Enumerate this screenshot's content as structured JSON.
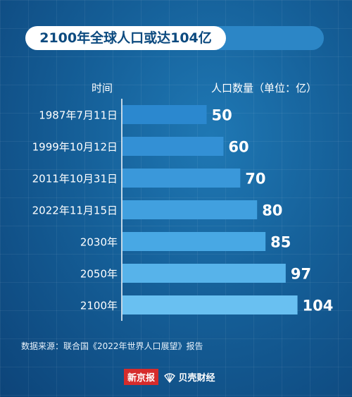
{
  "title": "2100年全球人口或达104亿",
  "headers": {
    "time": "时间",
    "unit": "人口数量（单位：亿）"
  },
  "chart_data": {
    "type": "bar",
    "orientation": "horizontal",
    "categories": [
      "1987年7月11日",
      "1999年10月12日",
      "2011年10月31日",
      "2022年11月15日",
      "2030年",
      "2050年",
      "2100年"
    ],
    "values": [
      50,
      60,
      70,
      80,
      85,
      97,
      104
    ],
    "data_labels": [
      "50",
      "60",
      "70",
      "80",
      "85",
      "97",
      "104"
    ],
    "colors": [
      "#2b88cf",
      "#3390d5",
      "#3a98da",
      "#41a0df",
      "#48a8e4",
      "#57b3ea",
      "#69c0f1"
    ]
  },
  "source": "数据来源：联合国《2022年世界人口展望》报告",
  "logos": {
    "xinjingbao": "新京报",
    "beike": "贝壳财经"
  }
}
